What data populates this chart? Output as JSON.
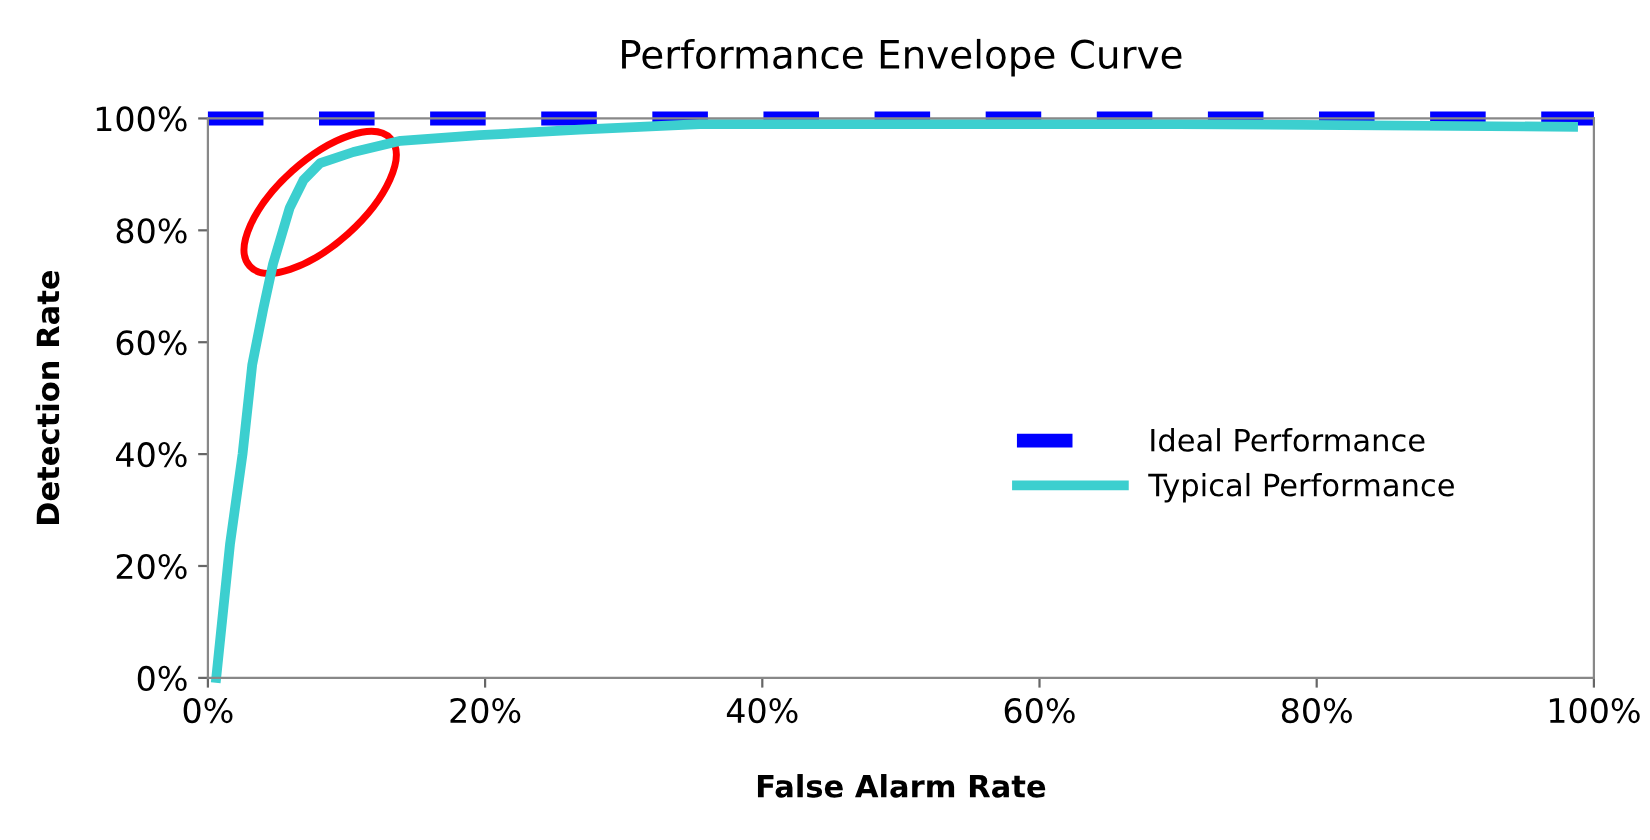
{
  "chart_data": {
    "type": "line",
    "title": "Performance Envelope Curve",
    "xlabel": "False Alarm Rate",
    "ylabel": "Detection Rate",
    "series": [
      {
        "name": "Ideal Performance",
        "color": "#0000ff",
        "line_style": "dashed",
        "x": [
          0,
          100
        ],
        "values": [
          100,
          100
        ]
      },
      {
        "name": "Typical Performance",
        "color": "#3ccfcf",
        "line_style": "solid",
        "x": [
          0.6,
          1.6,
          2.5,
          3.2,
          4.0,
          4.7,
          5.9,
          6.9,
          8.1,
          10.5,
          13.9,
          19.6,
          26.8,
          35.5,
          50,
          70,
          98.5
        ],
        "values": [
          0,
          24,
          40,
          56,
          66,
          74,
          84,
          89,
          92,
          94,
          96,
          97,
          98,
          99,
          99,
          99,
          98.5
        ]
      }
    ],
    "xlim": [
      0,
      100
    ],
    "ylim": [
      0,
      100
    ],
    "xticks": [
      {
        "value": 0,
        "label": "0%"
      },
      {
        "value": 20,
        "label": "20%"
      },
      {
        "value": 40,
        "label": "40%"
      },
      {
        "value": 60,
        "label": "60%"
      },
      {
        "value": 80,
        "label": "80%"
      },
      {
        "value": 100,
        "label": "100%"
      }
    ],
    "yticks": [
      {
        "value": 0,
        "label": "0%"
      },
      {
        "value": 20,
        "label": "20%"
      },
      {
        "value": 40,
        "label": "40%"
      },
      {
        "value": 60,
        "label": "60%"
      },
      {
        "value": 80,
        "label": "80%"
      },
      {
        "value": 100,
        "label": "100%"
      }
    ],
    "legend": "right",
    "grid": false,
    "marker": "none"
  }
}
